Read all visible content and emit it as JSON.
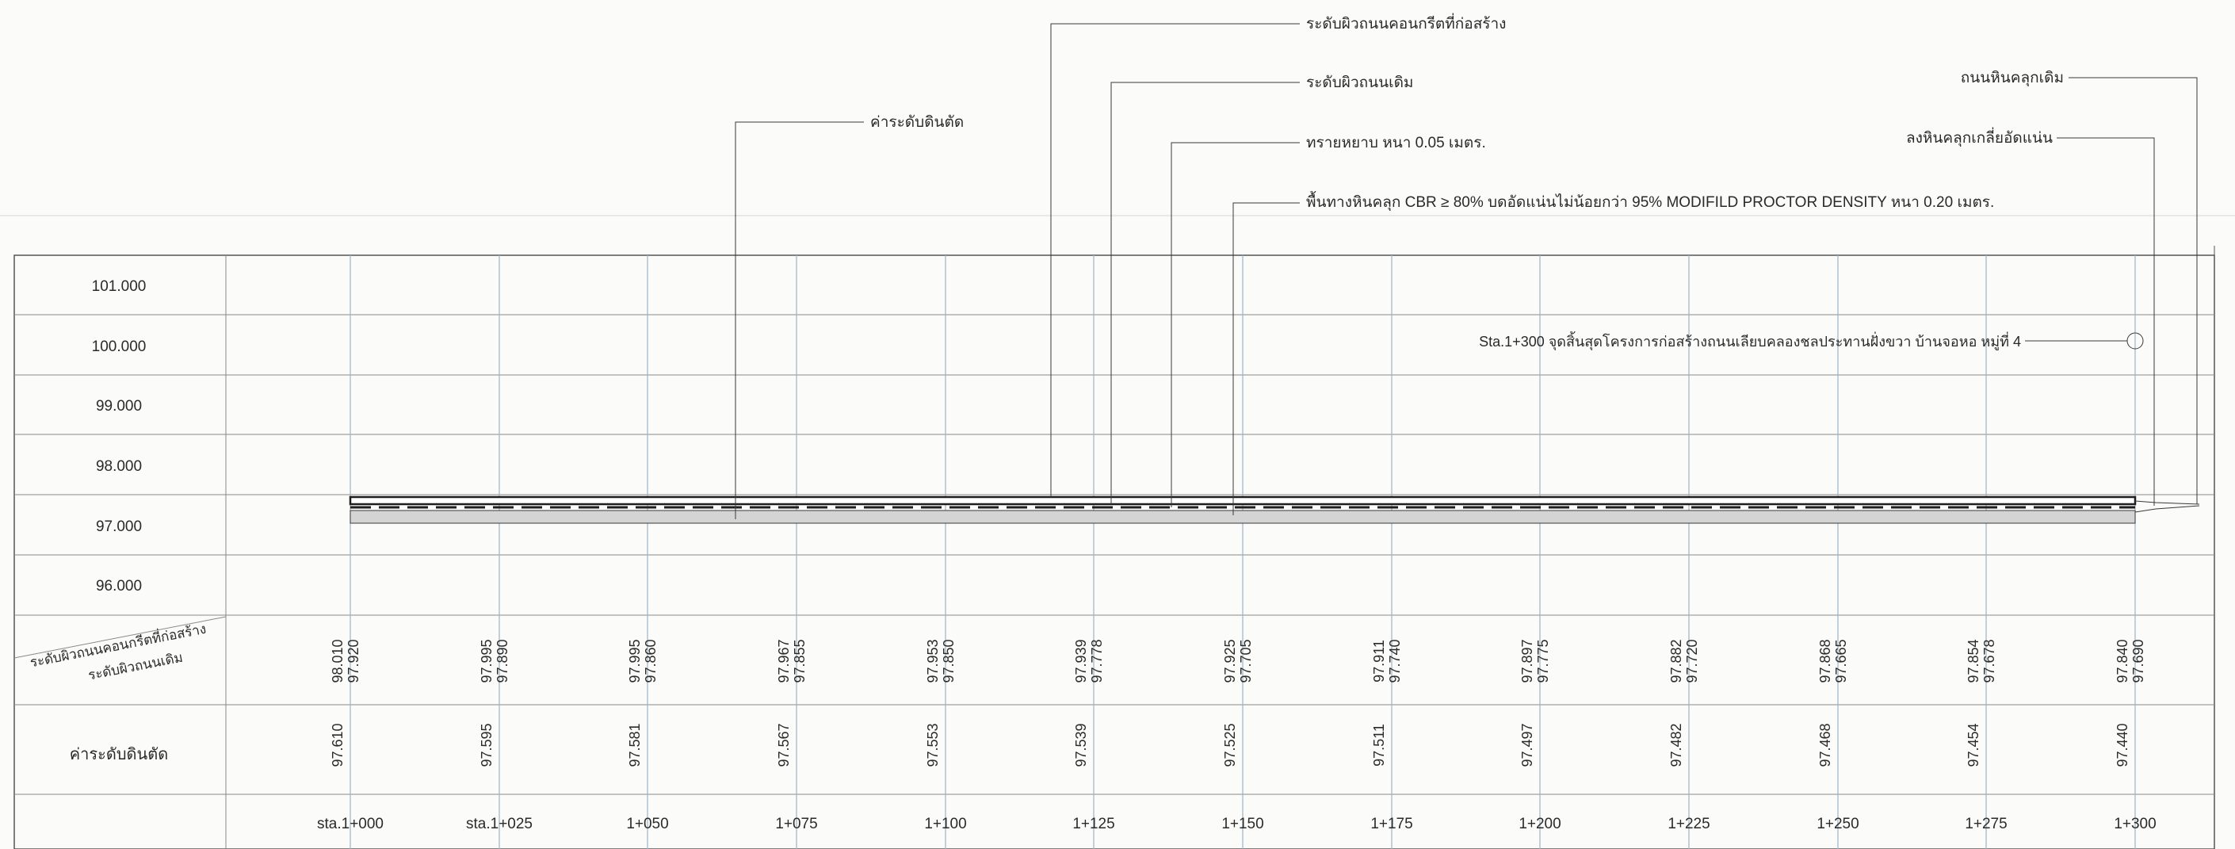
{
  "annotations": {
    "concrete_level": "ระดับผิวถนนคอนกรีตที่ก่อสร้าง",
    "existing_level": "ระดับผิวถนนเดิม",
    "cut_level": "ค่าระดับดินตัด",
    "sand": "ทรายหยาบ หนา 0.05 เมตร.",
    "base": "พื้นทางหินคลุก CBR ≥ 80% บดอัดแน่นไม่น้อยกว่า 95% MODIFILD PROCTOR DENSITY หนา 0.20 เมตร.",
    "existing_crushed_rock": "ถนนหินคลุกเดิม",
    "compacted_crushed_rock": "ลงหินคลุกเกลี่ยอัดแน่น",
    "end_note": "Sta.1+300 จุดสิ้นสุดโครงการก่อสร้างถนนเลียบคลองชลประทานฝั่งขวา บ้านจอหอ หมู่ที่ 4"
  },
  "elevation_labels": [
    "101.000",
    "100.000",
    "99.000",
    "98.000",
    "97.000",
    "96.000"
  ],
  "table": {
    "row1_title_line1": "ระดับผิวถนนคอนกรีตที่ก่อสร้าง",
    "row1_title_line2": "ระดับผิวถนนเดิม",
    "row2_title": "ค่าระดับดินตัด"
  },
  "stations": [
    {
      "sta": "sta.1+000",
      "concrete": "98.010",
      "existing": "97.920",
      "cut": "97.610"
    },
    {
      "sta": "sta.1+025",
      "concrete": "97.995",
      "existing": "97.890",
      "cut": "97.595"
    },
    {
      "sta": "1+050",
      "concrete": "97.995",
      "existing": "97.860",
      "cut": "97.581"
    },
    {
      "sta": "1+075",
      "concrete": "97.967",
      "existing": "97.855",
      "cut": "97.567"
    },
    {
      "sta": "1+100",
      "concrete": "97.953",
      "existing": "97.850",
      "cut": "97.553"
    },
    {
      "sta": "1+125",
      "concrete": "97.939",
      "existing": "97.778",
      "cut": "97.539"
    },
    {
      "sta": "1+150",
      "concrete": "97.925",
      "existing": "97.705",
      "cut": "97.525"
    },
    {
      "sta": "1+175",
      "concrete": "97.911",
      "existing": "97.740",
      "cut": "97.511"
    },
    {
      "sta": "1+200",
      "concrete": "97.897",
      "existing": "97.775",
      "cut": "97.497"
    },
    {
      "sta": "1+225",
      "concrete": "97.882",
      "existing": "97.720",
      "cut": "97.482"
    },
    {
      "sta": "1+250",
      "concrete": "97.868",
      "existing": "97.665",
      "cut": "97.468"
    },
    {
      "sta": "1+275",
      "concrete": "97.854",
      "existing": "97.678",
      "cut": "97.454"
    },
    {
      "sta": "1+300",
      "concrete": "97.840",
      "existing": "97.690",
      "cut": "97.440"
    }
  ],
  "colors": {
    "line": "#2a2a2a",
    "grid": "#8a8a8a",
    "station_line": "#9bb5c4",
    "fill": "#cfcfcf"
  }
}
